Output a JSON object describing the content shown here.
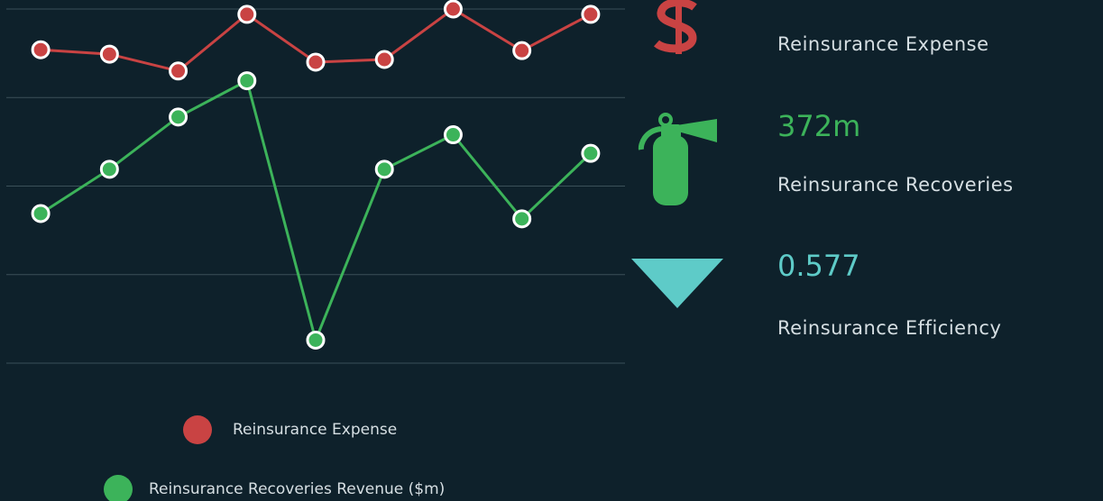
{
  "chart_data": {
    "type": "line",
    "categories": [
      null,
      null,
      null,
      null,
      null,
      null,
      null,
      null,
      null
    ],
    "series": [
      {
        "name": "Reinsurance Expense",
        "color": "#c94343",
        "values": [
          3.54,
          3.49,
          3.3,
          3.94,
          3.4,
          3.43,
          4.0,
          3.53,
          3.94
        ]
      },
      {
        "name": "Reinsurance Recoveries Revenue ($m)",
        "color": "#3cb35a",
        "values": [
          1.69,
          2.19,
          2.78,
          3.19,
          0.26,
          2.19,
          2.58,
          1.63,
          2.37
        ]
      }
    ],
    "ylim": [
      0,
      4
    ],
    "yticks": [
      0,
      1,
      2,
      3,
      4
    ],
    "grid": true
  },
  "kpis": [
    {
      "label": "Reinsurance Expense",
      "color": "#c94343"
    },
    {
      "value": "372m",
      "label": "Reinsurance Recoveries",
      "color": "#3cb35a"
    },
    {
      "value": "0.577",
      "label": "Reinsurance Efficiency",
      "color": "#5ecbc8"
    }
  ]
}
